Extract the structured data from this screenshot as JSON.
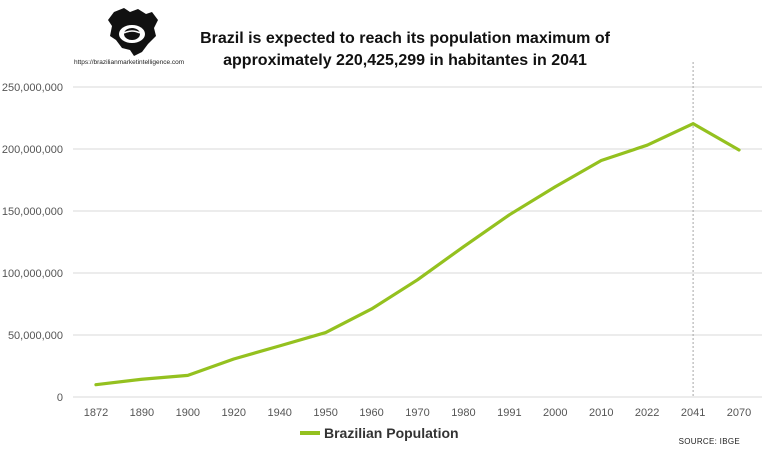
{
  "logo": {
    "name": "brazil-map-logo",
    "url_text": "https://brazilianmarketintelligence.com"
  },
  "title_line1": "Brazil is expected to reach its population maximum of",
  "title_line2": "approximately 220,425,299 in habitantes in 2041",
  "source": "SOURCE: IBGE",
  "colors": {
    "series": "#94c11f",
    "grid": "#d9d9d9",
    "marker": "#a6a6a6"
  },
  "chart_data": {
    "type": "line",
    "categories": [
      "1872",
      "1890",
      "1900",
      "1920",
      "1940",
      "1950",
      "1960",
      "1970",
      "1980",
      "1991",
      "2000",
      "2010",
      "2022",
      "2041",
      "2070"
    ],
    "series": [
      {
        "name": "Brazilian Population",
        "values": [
          9930478,
          14333915,
          17438434,
          30635605,
          41236315,
          51944397,
          70992343,
          94508583,
          121150573,
          146917459,
          169590693,
          190755799,
          203062512,
          220425299,
          199228708
        ]
      }
    ],
    "y_ticks": [
      "0",
      "50,000,000",
      "100,000,000",
      "150,000,000",
      "200,000,000",
      "250,000,000"
    ],
    "ylim": [
      0,
      250000000
    ],
    "grid": true,
    "legend_position": "bottom",
    "marker_category": "2041"
  }
}
